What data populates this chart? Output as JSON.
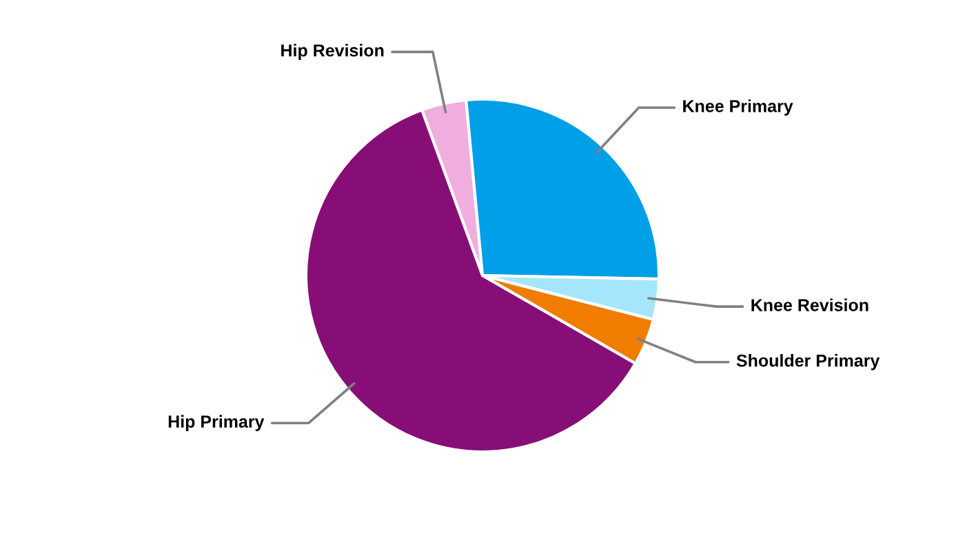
{
  "chart_data": {
    "type": "pie",
    "categories": [
      "Hip Revision",
      "Knee Primary",
      "Knee Revision",
      "Shoulder Primary",
      "Hip Primary"
    ],
    "values": [
      4.1,
      26.8,
      3.7,
      4.3,
      61.1
    ],
    "colors": [
      "#f0aede",
      "#009fe8",
      "#a6e6fc",
      "#f07c00",
      "#870e77"
    ],
    "legend": false
  }
}
